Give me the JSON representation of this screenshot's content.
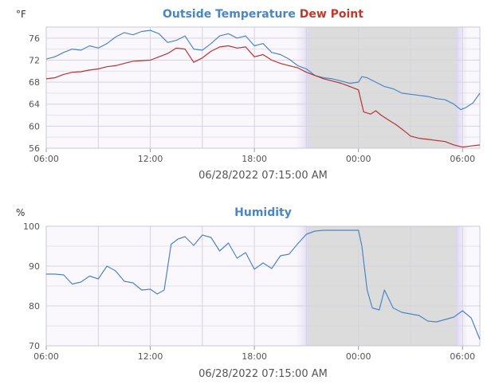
{
  "chart_data": [
    {
      "type": "line",
      "title_parts": [
        {
          "text": "Outside Temperature",
          "color": "#4a86c5"
        },
        {
          "text": "Dew Point",
          "color": "#c0392b"
        }
      ],
      "unit_label": "°F",
      "x_ticks": [
        "06:00",
        "12:00",
        "18:00",
        "00:00",
        "06:00"
      ],
      "x_tick_hours": [
        6,
        12,
        18,
        24,
        30
      ],
      "xlim": [
        6,
        31
      ],
      "y_ticks": [
        "56",
        "60",
        "64",
        "68",
        "72",
        "76"
      ],
      "ylim": [
        56,
        78
      ],
      "date_label": "06/28/2022 07:15:00 AM",
      "night_shading": {
        "dusk_start": 20.4,
        "dark_start": 21.2,
        "dark_end": 29.6,
        "dawn_end": 30.3
      },
      "series": [
        {
          "name": "Outside Temperature",
          "color": "#4a86c5",
          "x": [
            6.0,
            6.5,
            7.0,
            7.5,
            8.0,
            8.5,
            9.0,
            9.5,
            10.0,
            10.5,
            11.0,
            11.5,
            12.0,
            12.5,
            13.0,
            13.5,
            14.0,
            14.5,
            15.0,
            15.5,
            16.0,
            16.5,
            17.0,
            17.5,
            18.0,
            18.5,
            19.0,
            19.5,
            20.0,
            20.5,
            21.0,
            21.5,
            22.0,
            22.5,
            23.0,
            23.5,
            24.0,
            24.2,
            24.5,
            25.0,
            25.5,
            26.0,
            26.5,
            27.0,
            27.5,
            28.0,
            28.5,
            29.0,
            29.5,
            29.9,
            30.2,
            30.6,
            31.0
          ],
          "y": [
            72.2,
            72.6,
            73.4,
            74.0,
            73.8,
            74.6,
            74.2,
            75.0,
            76.2,
            77.0,
            76.6,
            77.2,
            77.4,
            76.8,
            75.2,
            75.6,
            76.4,
            74.0,
            73.8,
            75.0,
            76.4,
            76.8,
            76.0,
            76.4,
            74.6,
            75.0,
            73.4,
            73.0,
            72.2,
            71.0,
            70.4,
            69.2,
            68.8,
            68.6,
            68.2,
            67.8,
            68.0,
            69.0,
            68.8,
            68.0,
            67.2,
            66.8,
            66.0,
            65.8,
            65.6,
            65.4,
            65.0,
            64.8,
            64.0,
            63.0,
            63.4,
            64.2,
            66.0
          ]
        },
        {
          "name": "Dew Point",
          "color": "#b83232",
          "x": [
            6.0,
            6.5,
            7.0,
            7.5,
            8.0,
            8.5,
            9.0,
            9.5,
            10.0,
            10.5,
            11.0,
            11.5,
            12.0,
            12.5,
            13.0,
            13.5,
            14.0,
            14.5,
            15.0,
            15.5,
            16.0,
            16.5,
            17.0,
            17.5,
            18.0,
            18.5,
            19.0,
            19.5,
            20.0,
            20.5,
            21.0,
            21.5,
            22.0,
            22.5,
            23.0,
            23.5,
            24.0,
            24.3,
            24.7,
            25.0,
            25.3,
            25.8,
            26.2,
            26.7,
            27.0,
            27.5,
            28.0,
            28.5,
            29.0,
            29.5,
            30.0,
            30.5,
            31.0
          ],
          "y": [
            68.6,
            68.8,
            69.4,
            69.8,
            69.9,
            70.2,
            70.4,
            70.8,
            71.0,
            71.4,
            71.8,
            71.9,
            72.0,
            72.6,
            73.2,
            74.2,
            74.0,
            71.6,
            72.4,
            73.6,
            74.4,
            74.6,
            74.2,
            74.4,
            72.6,
            73.0,
            72.0,
            71.4,
            71.0,
            70.6,
            69.8,
            69.2,
            68.6,
            68.2,
            67.8,
            67.2,
            66.6,
            62.6,
            62.2,
            62.8,
            62.0,
            61.0,
            60.2,
            59.0,
            58.2,
            57.8,
            57.6,
            57.4,
            57.2,
            56.6,
            56.2,
            56.4,
            56.6
          ]
        }
      ]
    },
    {
      "type": "line",
      "title_parts": [
        {
          "text": "Humidity",
          "color": "#4a86c5"
        }
      ],
      "unit_label": "%",
      "x_ticks": [
        "06:00",
        "12:00",
        "18:00",
        "00:00",
        "06:00"
      ],
      "x_tick_hours": [
        6,
        12,
        18,
        24,
        30
      ],
      "xlim": [
        6,
        31
      ],
      "y_ticks": [
        "70",
        "80",
        "90",
        "100"
      ],
      "ylim": [
        70,
        100
      ],
      "date_label": "06/28/2022 07:15:00 AM",
      "night_shading": {
        "dusk_start": 20.4,
        "dark_start": 21.2,
        "dark_end": 29.6,
        "dawn_end": 30.3
      },
      "series": [
        {
          "name": "Humidity",
          "color": "#4a86c5",
          "x": [
            6.0,
            6.5,
            7.0,
            7.5,
            8.0,
            8.5,
            9.0,
            9.5,
            10.0,
            10.5,
            11.0,
            11.5,
            12.0,
            12.4,
            12.8,
            13.2,
            13.6,
            14.0,
            14.5,
            15.0,
            15.5,
            16.0,
            16.5,
            17.0,
            17.5,
            18.0,
            18.5,
            19.0,
            19.5,
            20.0,
            20.5,
            21.0,
            21.5,
            22.0,
            22.5,
            23.0,
            23.5,
            24.0,
            24.2,
            24.5,
            24.8,
            25.2,
            25.5,
            26.0,
            26.5,
            27.0,
            27.5,
            28.0,
            28.5,
            29.0,
            29.5,
            30.0,
            30.5,
            31.0
          ],
          "y": [
            88.0,
            88.0,
            87.8,
            85.5,
            86.0,
            87.5,
            86.8,
            90.0,
            88.8,
            86.2,
            85.8,
            84.0,
            84.2,
            83.0,
            84.0,
            95.5,
            96.8,
            97.4,
            95.2,
            97.8,
            97.2,
            93.8,
            95.8,
            92.0,
            93.4,
            89.2,
            90.8,
            89.4,
            92.6,
            93.0,
            95.6,
            98.0,
            98.8,
            99.0,
            99.0,
            99.0,
            99.0,
            99.0,
            95.0,
            84.0,
            79.5,
            79.0,
            84.0,
            79.5,
            78.4,
            78.0,
            77.6,
            76.2,
            76.0,
            76.6,
            77.2,
            78.8,
            77.0,
            71.6
          ]
        }
      ]
    }
  ]
}
